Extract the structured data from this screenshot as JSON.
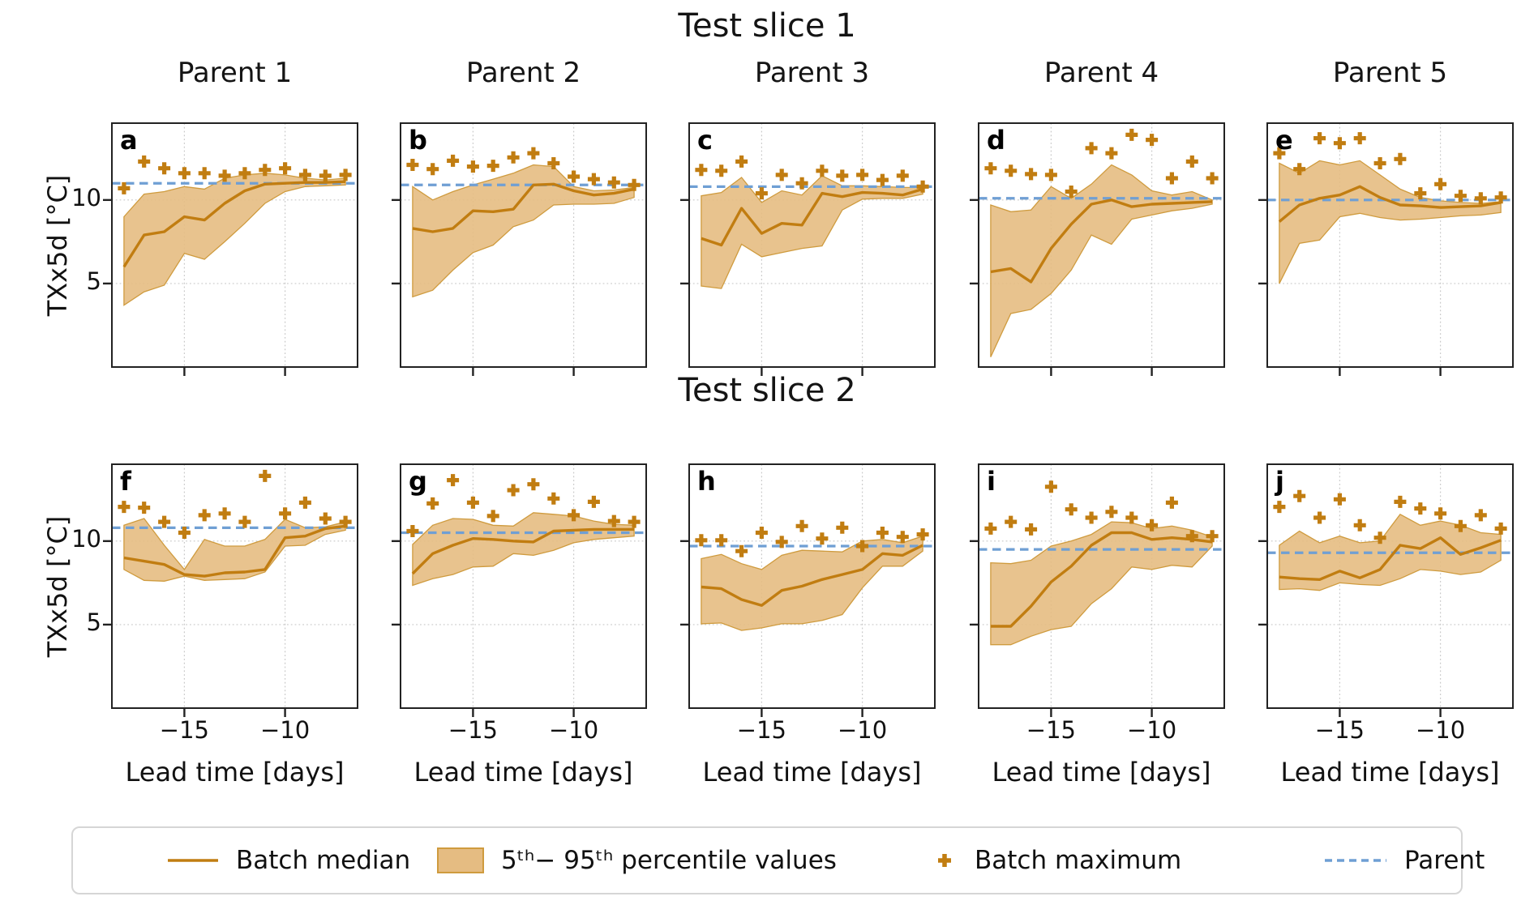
{
  "figure": {
    "row1_title": "Test slice 1",
    "row2_title": "Test slice 2"
  },
  "axes": {
    "ylabel": "TXx5d [°C]",
    "xlabel": "Lead time [days]",
    "ytick_labels": [
      "10",
      "5"
    ],
    "xtick_labels": [
      "−15",
      "−10"
    ]
  },
  "legend": {
    "items": [
      {
        "swatch": "median-line",
        "label": "Batch median"
      },
      {
        "swatch": "percentile-band",
        "label": "5ᵗʰ− 95ᵗʰ percentile values"
      },
      {
        "swatch": "max-plus-marker",
        "label": "Batch maximum"
      },
      {
        "swatch": "parent-dashed-line",
        "label": "Parent"
      }
    ]
  },
  "colors": {
    "median_line": "#c17d11",
    "band_fill": "#e5bc82",
    "band_edge": "#cf9b3e",
    "max_marker": "#c17d11",
    "parent_line": "#6f9fd4",
    "grid": "#c9c9c9",
    "spine": "#222222"
  },
  "chart_data": {
    "type": "line",
    "title": "Test slice 1 / Test slice 2",
    "xlabel": "Lead time [days]",
    "ylabel": "TXx5d [°C]",
    "x": [
      -18,
      -17,
      -16,
      -15,
      -14,
      -13,
      -12,
      -11,
      -10,
      -9,
      -8,
      -7
    ],
    "xlim": [
      -18.6,
      -6.4
    ],
    "ylim": [
      0,
      14.6
    ],
    "xticks": [
      -15,
      -10
    ],
    "yticks": [
      5,
      10
    ],
    "grid": true,
    "legend_position": "bottom",
    "series_legend": [
      "Batch median",
      "5th-95th percentile values",
      "Batch maximum",
      "Parent"
    ],
    "panels": [
      {
        "label": "a",
        "row": 1,
        "column_title": "Parent 1",
        "parent": 11.0,
        "median": [
          6.0,
          7.9,
          8.1,
          9.0,
          8.8,
          9.8,
          10.55,
          10.95,
          11.0,
          11.05,
          11.05,
          11.1
        ],
        "p95": [
          9.0,
          10.35,
          10.5,
          10.8,
          10.65,
          11.3,
          11.5,
          11.6,
          11.5,
          11.3,
          11.2,
          11.3
        ],
        "p5": [
          3.7,
          4.5,
          4.9,
          6.8,
          6.45,
          7.5,
          8.6,
          9.8,
          10.5,
          10.8,
          10.85,
          10.9
        ],
        "batch_max": [
          10.7,
          12.3,
          11.9,
          11.6,
          11.6,
          11.45,
          11.6,
          11.8,
          11.9,
          11.5,
          11.45,
          11.5
        ]
      },
      {
        "label": "b",
        "row": 1,
        "column_title": "Parent 2",
        "parent": 10.9,
        "median": [
          8.3,
          8.1,
          8.3,
          9.35,
          9.3,
          9.45,
          10.9,
          10.95,
          10.55,
          10.3,
          10.4,
          10.65
        ],
        "p95": [
          10.8,
          10.0,
          10.5,
          10.9,
          11.25,
          11.6,
          12.1,
          12.0,
          10.8,
          10.55,
          10.6,
          10.75
        ],
        "p5": [
          4.2,
          4.6,
          5.8,
          6.85,
          7.3,
          8.4,
          8.8,
          9.7,
          9.75,
          9.75,
          9.8,
          10.15
        ],
        "batch_max": [
          12.1,
          11.85,
          12.35,
          12.0,
          12.05,
          12.55,
          12.8,
          12.2,
          11.4,
          11.25,
          11.05,
          10.9
        ]
      },
      {
        "label": "c",
        "row": 1,
        "column_title": "Parent 3",
        "parent": 10.8,
        "median": [
          7.7,
          7.3,
          9.5,
          8.0,
          8.6,
          8.5,
          10.4,
          10.2,
          10.45,
          10.4,
          10.3,
          10.65
        ],
        "p95": [
          10.25,
          10.45,
          11.35,
          9.85,
          10.55,
          10.3,
          11.45,
          10.85,
          10.85,
          10.8,
          10.75,
          10.75
        ],
        "p5": [
          4.85,
          4.7,
          7.35,
          6.6,
          6.85,
          7.1,
          7.25,
          9.4,
          10.05,
          10.1,
          10.1,
          10.35
        ],
        "batch_max": [
          11.8,
          11.75,
          12.3,
          10.4,
          11.5,
          11.0,
          11.75,
          11.45,
          11.5,
          11.2,
          11.45,
          10.8
        ]
      },
      {
        "label": "d",
        "row": 1,
        "column_title": "Parent 4",
        "parent": 10.1,
        "median": [
          5.7,
          5.9,
          5.1,
          7.1,
          8.55,
          9.75,
          10.0,
          9.6,
          9.75,
          9.8,
          9.85,
          9.9
        ],
        "p95": [
          9.7,
          9.3,
          9.4,
          10.8,
          10.1,
          10.95,
          12.1,
          11.5,
          10.55,
          10.3,
          10.5,
          10.0
        ],
        "p5": [
          0.6,
          3.2,
          3.45,
          4.4,
          5.8,
          7.9,
          7.35,
          8.85,
          9.1,
          9.35,
          9.5,
          9.75
        ],
        "batch_max": [
          11.9,
          11.75,
          11.55,
          11.5,
          10.5,
          13.1,
          12.8,
          13.9,
          13.6,
          11.3,
          12.3,
          11.3
        ]
      },
      {
        "label": "e",
        "row": 1,
        "column_title": "Parent 5",
        "parent": 10.0,
        "median": [
          8.7,
          9.7,
          10.1,
          10.3,
          10.8,
          10.15,
          9.7,
          9.65,
          9.55,
          9.6,
          9.65,
          9.85
        ],
        "p95": [
          12.2,
          11.6,
          12.35,
          12.1,
          12.35,
          11.5,
          10.65,
          10.15,
          9.95,
          9.85,
          9.8,
          9.9
        ],
        "p5": [
          5.0,
          7.4,
          7.6,
          9.0,
          9.2,
          8.95,
          8.8,
          8.85,
          8.95,
          9.05,
          9.1,
          9.25
        ],
        "batch_max": [
          12.8,
          11.85,
          13.7,
          13.4,
          13.7,
          12.2,
          12.45,
          10.4,
          10.95,
          10.25,
          10.1,
          10.15
        ]
      },
      {
        "label": "f",
        "row": 2,
        "column_title": "",
        "parent": 10.8,
        "median": [
          9.0,
          8.8,
          8.6,
          8.0,
          7.9,
          8.1,
          8.15,
          8.3,
          10.2,
          10.3,
          10.75,
          10.9
        ],
        "p95": [
          10.95,
          11.35,
          9.75,
          8.3,
          10.1,
          9.7,
          9.7,
          10.1,
          11.3,
          10.8,
          10.85,
          11.15
        ],
        "p5": [
          8.3,
          7.65,
          7.6,
          7.9,
          7.65,
          7.7,
          7.75,
          8.15,
          9.7,
          9.75,
          10.4,
          10.65
        ],
        "batch_max": [
          12.05,
          12.0,
          11.15,
          10.5,
          11.55,
          11.65,
          11.15,
          13.9,
          11.65,
          12.3,
          11.35,
          11.15
        ]
      },
      {
        "label": "g",
        "row": 2,
        "column_title": "",
        "parent": 10.5,
        "median": [
          8.05,
          9.25,
          9.75,
          10.15,
          10.1,
          10.0,
          9.95,
          10.6,
          10.65,
          10.7,
          10.7,
          10.7
        ],
        "p95": [
          9.8,
          10.95,
          11.35,
          11.3,
          10.95,
          10.9,
          11.7,
          11.6,
          11.5,
          11.2,
          11.0,
          10.95
        ],
        "p5": [
          7.35,
          7.75,
          8.0,
          8.45,
          8.5,
          9.25,
          9.15,
          9.45,
          9.9,
          10.1,
          10.2,
          10.3
        ],
        "batch_max": [
          10.6,
          12.25,
          13.65,
          12.3,
          11.5,
          13.05,
          13.4,
          12.55,
          11.55,
          12.35,
          11.2,
          11.15
        ]
      },
      {
        "label": "h",
        "row": 2,
        "column_title": "",
        "parent": 9.7,
        "median": [
          7.25,
          7.15,
          6.5,
          6.15,
          7.05,
          7.3,
          7.7,
          8.0,
          8.3,
          9.25,
          9.15,
          9.75
        ],
        "p95": [
          8.95,
          9.2,
          8.65,
          8.3,
          9.15,
          9.45,
          9.4,
          9.35,
          10.0,
          10.1,
          9.9,
          10.3
        ],
        "p5": [
          5.05,
          5.1,
          4.65,
          4.8,
          5.05,
          5.05,
          5.25,
          5.6,
          7.2,
          8.5,
          8.5,
          9.4
        ],
        "batch_max": [
          10.05,
          10.05,
          9.4,
          10.5,
          9.95,
          10.9,
          10.15,
          10.8,
          9.7,
          10.5,
          10.25,
          10.4
        ]
      },
      {
        "label": "i",
        "row": 2,
        "column_title": "",
        "parent": 9.5,
        "median": [
          4.9,
          4.9,
          6.1,
          7.55,
          8.5,
          9.75,
          10.5,
          10.5,
          10.1,
          10.2,
          10.1,
          9.95
        ],
        "p95": [
          8.7,
          8.65,
          8.85,
          9.7,
          10.0,
          10.4,
          11.15,
          11.1,
          10.75,
          10.9,
          10.65,
          10.25
        ],
        "p5": [
          3.8,
          3.8,
          4.3,
          4.7,
          4.9,
          6.25,
          7.15,
          8.45,
          8.3,
          8.55,
          8.45,
          9.7
        ],
        "batch_max": [
          10.75,
          11.15,
          10.7,
          13.25,
          11.9,
          11.4,
          11.75,
          11.4,
          10.95,
          12.3,
          10.3,
          10.3
        ]
      },
      {
        "label": "j",
        "row": 2,
        "column_title": "",
        "parent": 9.3,
        "median": [
          7.85,
          7.75,
          7.7,
          8.2,
          7.8,
          8.3,
          9.75,
          9.55,
          10.2,
          9.2,
          9.6,
          10.05
        ],
        "p95": [
          9.75,
          10.6,
          9.9,
          10.3,
          9.9,
          10.0,
          11.6,
          10.95,
          11.2,
          10.95,
          10.5,
          10.4
        ],
        "p5": [
          7.1,
          7.15,
          7.05,
          7.5,
          7.4,
          7.35,
          7.75,
          8.3,
          8.2,
          8.0,
          8.15,
          8.85
        ],
        "batch_max": [
          12.05,
          12.7,
          11.4,
          12.5,
          10.95,
          10.2,
          12.35,
          11.95,
          11.65,
          10.9,
          11.55,
          10.75
        ]
      }
    ]
  }
}
